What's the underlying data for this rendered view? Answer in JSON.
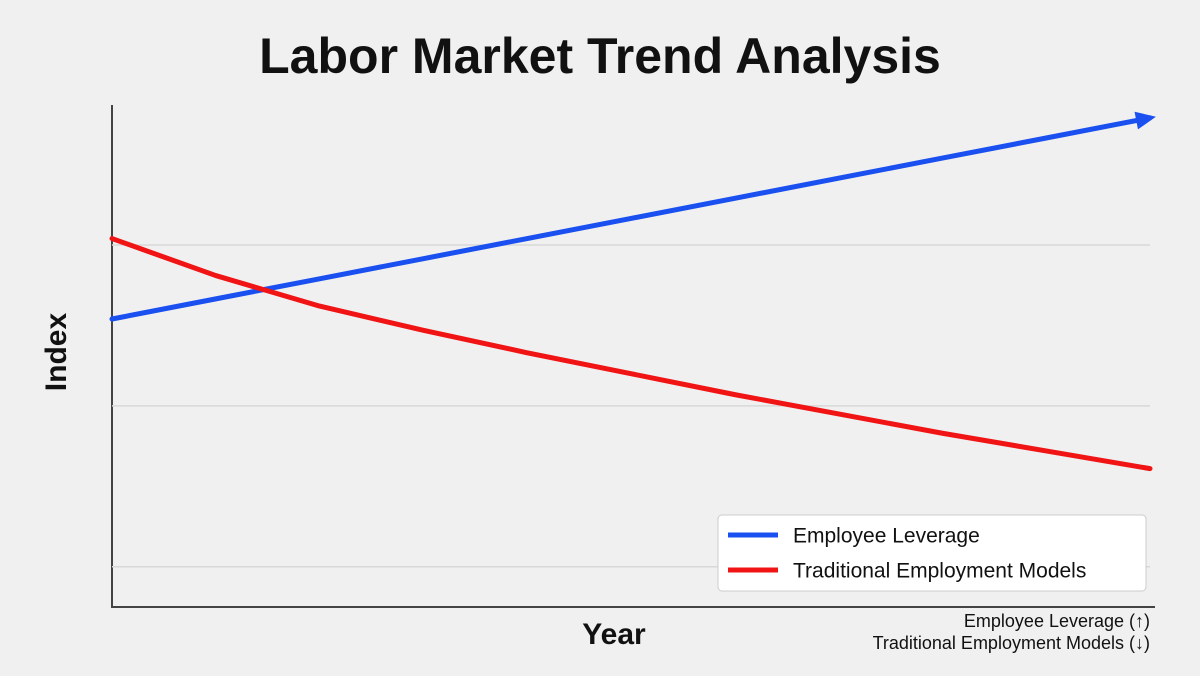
{
  "chart_data": {
    "type": "line",
    "title": "Labor Market Trend Analysis",
    "x_label": "Year",
    "y_label": "Index",
    "x": [
      0,
      1,
      2,
      3,
      4,
      5,
      6,
      7,
      8,
      9,
      10
    ],
    "xlim": [
      0,
      10
    ],
    "ylim": [
      -0.25,
      2.87
    ],
    "gridlines": [
      0,
      1,
      2
    ],
    "legend": "lower right",
    "series": [
      {
        "name": "Employee Leverage",
        "color": "#1a4ff0",
        "arrow": true,
        "values": [
          1.54,
          1.665,
          1.79,
          1.915,
          2.04,
          2.165,
          2.29,
          2.415,
          2.54,
          2.665,
          2.79
        ]
      },
      {
        "name": "Traditional Employment Models",
        "color": "#f01414",
        "arrow": false,
        "values": [
          2.04,
          1.81,
          1.62,
          1.47,
          1.33,
          1.2,
          1.07,
          0.95,
          0.83,
          0.72,
          0.61
        ]
      }
    ],
    "notes": [
      "Employee Leverage (↑)",
      "Traditional Employment Models (↓)"
    ]
  }
}
